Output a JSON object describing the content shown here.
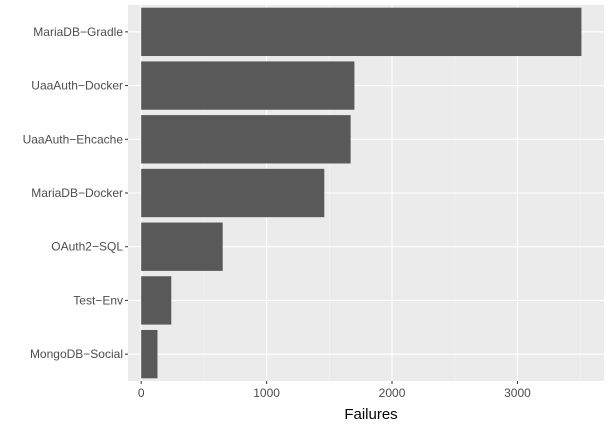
{
  "chart_data": {
    "type": "bar",
    "orientation": "horizontal",
    "categories": [
      "MariaDB−Gradle",
      "UaaAuth−Docker",
      "UaaAuth−Ehcache",
      "MariaDB−Docker",
      "OAuth2−SQL",
      "Test−Env",
      "MongoDB−Social"
    ],
    "values": [
      3510,
      1700,
      1670,
      1460,
      650,
      240,
      130
    ],
    "xlabel": "Failures",
    "ylabel": "",
    "xlim": [
      -105,
      3690
    ],
    "xticks": [
      "0",
      "1000",
      "2000",
      "3000"
    ],
    "xtick_values": [
      0,
      1000,
      2000,
      3000
    ],
    "grid": true,
    "colors": {
      "bar": "#595959",
      "panel": "#ebebeb",
      "grid_major": "#ffffff",
      "grid_minor": "#f5f5f5",
      "tick": "#333333",
      "tick_label": "#4d4d4d"
    }
  }
}
